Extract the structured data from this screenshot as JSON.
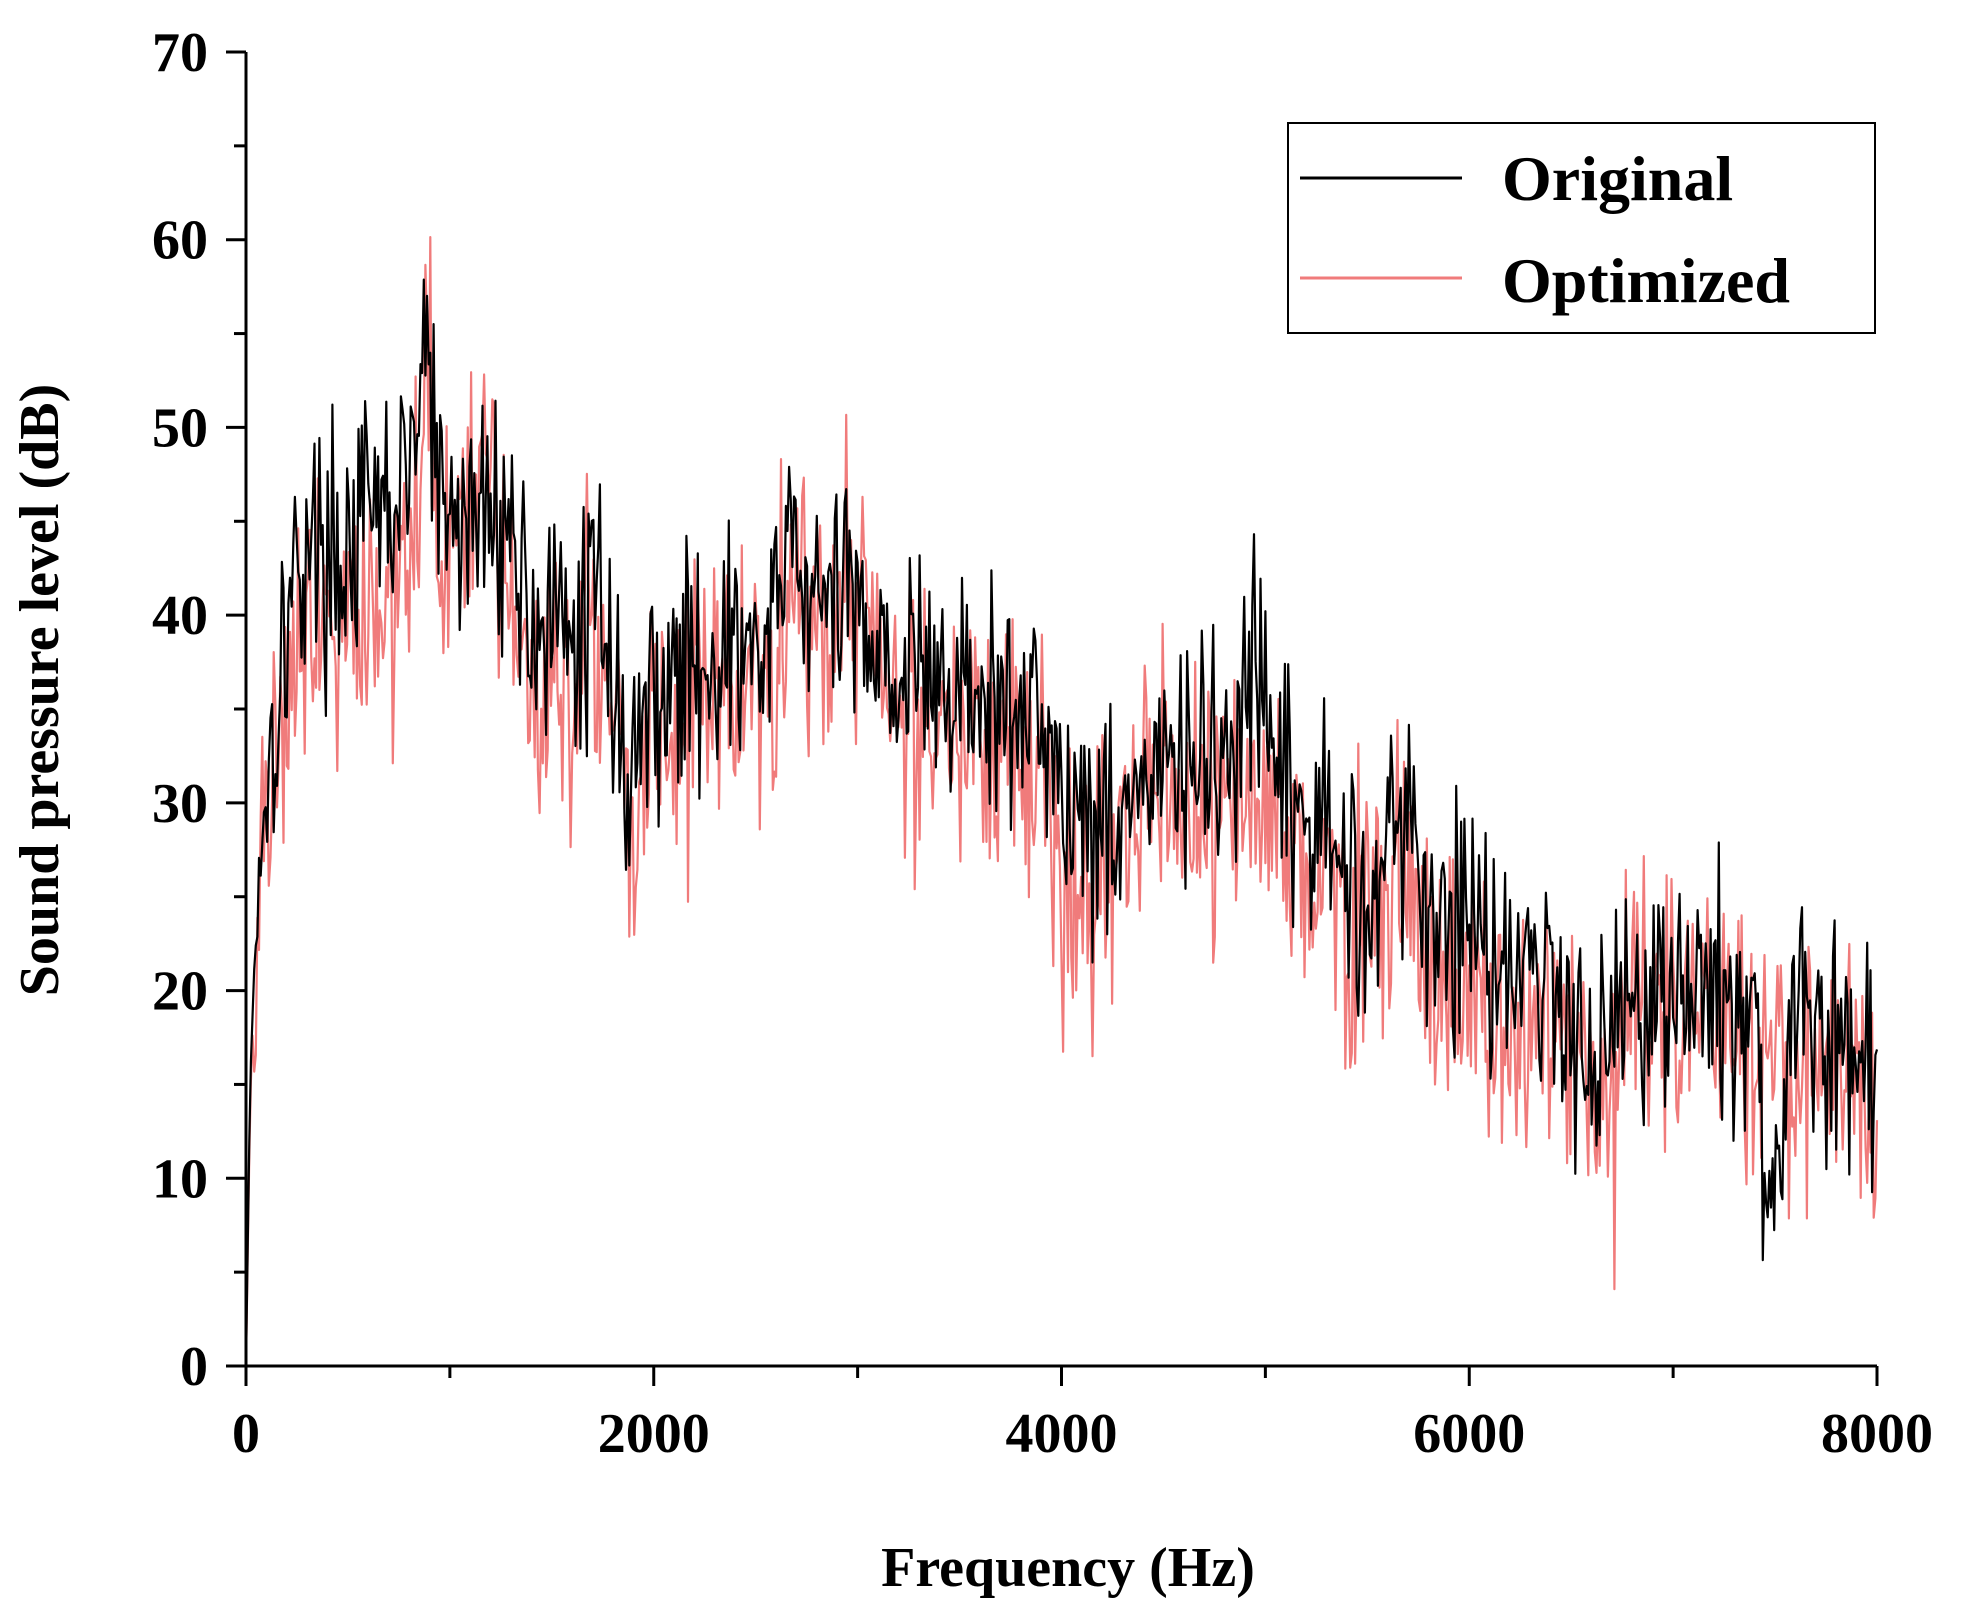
{
  "chart_data": {
    "type": "line",
    "title": "",
    "xlabel": "Frequency (Hz)",
    "ylabel": "Sound pressure level (dB)",
    "xlim": [
      0,
      8000
    ],
    "ylim": [
      0,
      70
    ],
    "xticks": [
      0,
      2000,
      4000,
      6000,
      8000
    ],
    "xtick_labels": [
      "0",
      "2000",
      "4000",
      "6000",
      "8000"
    ],
    "yticks": [
      0,
      10,
      20,
      30,
      40,
      50,
      60,
      70
    ],
    "ytick_labels": [
      "0",
      "10",
      "20",
      "30",
      "40",
      "50",
      "60",
      "70"
    ],
    "x_minor_step": 1000,
    "y_minor_step": 5,
    "grid": false,
    "legend_position": "top-right",
    "series": [
      {
        "name": "Original",
        "color": "#000000",
        "noise": 3.2,
        "seed": 17,
        "x": [
          0,
          20,
          60,
          120,
          200,
          300,
          450,
          600,
          750,
          850,
          880,
          950,
          1100,
          1250,
          1400,
          1600,
          1760,
          1850,
          2000,
          2300,
          2600,
          2650,
          2800,
          3000,
          3200,
          3500,
          3800,
          3900,
          4000,
          4200,
          4400,
          4600,
          4800,
          4950,
          5100,
          5300,
          5500,
          5650,
          5800,
          6000,
          6200,
          6400,
          6600,
          6800,
          7000,
          7200,
          7400,
          7450,
          7600,
          7800,
          8000
        ],
        "y": [
          0,
          15,
          27,
          33,
          40,
          44,
          43,
          45,
          46,
          50,
          56,
          45,
          45,
          46,
          40,
          38,
          42,
          31,
          36,
          38,
          38,
          45,
          40,
          41,
          37,
          36,
          34,
          37,
          30,
          29,
          31,
          32,
          32,
          36,
          30,
          28,
          25,
          30,
          24,
          24,
          22,
          20,
          17,
          20,
          20,
          20,
          18,
          9,
          18,
          17,
          15
        ]
      },
      {
        "name": "Optimized",
        "color": "#f07b7b",
        "noise": 3.8,
        "seed": 91,
        "x": [
          0,
          20,
          60,
          120,
          200,
          300,
          450,
          600,
          750,
          850,
          880,
          950,
          1100,
          1200,
          1300,
          1400,
          1600,
          1760,
          1850,
          1900,
          2000,
          2300,
          2600,
          2650,
          2800,
          2950,
          3200,
          3500,
          3800,
          3950,
          4000,
          4200,
          4400,
          4600,
          4800,
          5000,
          5300,
          5500,
          5650,
          5800,
          6000,
          6200,
          6400,
          6600,
          6700,
          6800,
          7000,
          7200,
          7400,
          7600,
          7800,
          8000
        ],
        "y": [
          0,
          14,
          26,
          31,
          37,
          41,
          40,
          40,
          42,
          46,
          53,
          43,
          44,
          48,
          40,
          37,
          36,
          40,
          30,
          28,
          34,
          36,
          37,
          43,
          38,
          43,
          35,
          33,
          32,
          31,
          25,
          26,
          30,
          31,
          29,
          30,
          26,
          23,
          28,
          20,
          20,
          17,
          18,
          16,
          12,
          20,
          18,
          20,
          16,
          16,
          17,
          12
        ]
      }
    ]
  }
}
